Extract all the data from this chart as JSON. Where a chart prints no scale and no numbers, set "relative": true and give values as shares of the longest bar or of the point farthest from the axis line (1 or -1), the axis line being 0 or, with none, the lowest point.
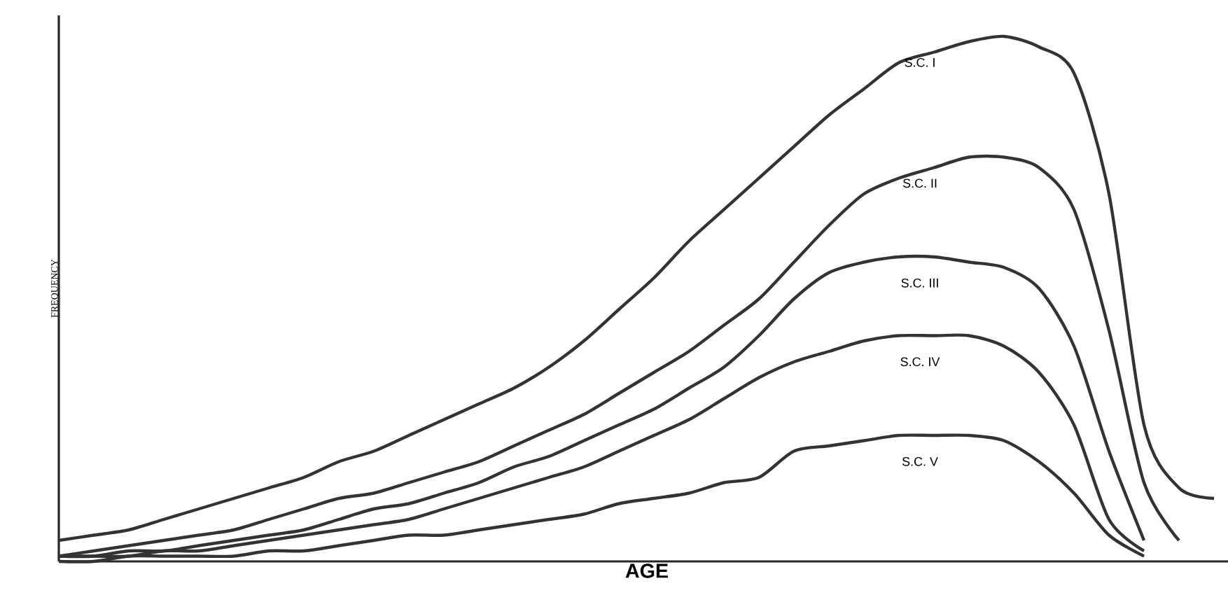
{
  "chart_data": {
    "type": "line",
    "xlabel": "AGE",
    "ylabel": "FREQUENCY",
    "relative": true,
    "line_style": "solid",
    "categories": [
      null,
      null,
      null,
      null,
      null,
      null,
      null,
      null,
      null,
      null,
      null,
      null,
      null,
      null,
      null,
      null,
      null,
      null,
      null,
      null,
      null,
      null,
      null,
      null,
      null,
      null,
      null,
      null,
      null,
      null,
      null,
      null,
      null,
      null
    ],
    "series": [
      {
        "name": "S.C. I",
        "color": "#333333",
        "values": [
          0.04,
          0.05,
          0.06,
          0.08,
          0.1,
          0.12,
          0.14,
          0.16,
          0.19,
          0.21,
          0.24,
          0.27,
          0.3,
          0.33,
          0.37,
          0.42,
          0.48,
          0.54,
          0.61,
          0.67,
          0.73,
          0.79,
          0.85,
          0.9,
          0.95,
          0.97,
          0.99,
          1,
          0.98,
          0.93,
          0.7,
          0.26,
          0.14,
          0.12
        ]
      },
      {
        "name": "S.C. II",
        "color": "#333333",
        "values": [
          0.01,
          0.02,
          0.03,
          0.04,
          0.05,
          0.06,
          0.08,
          0.1,
          0.12,
          0.13,
          0.15,
          0.17,
          0.19,
          0.22,
          0.25,
          0.28,
          0.32,
          0.36,
          0.4,
          0.45,
          0.5,
          0.57,
          0.64,
          0.7,
          0.73,
          0.75,
          0.77,
          0.77,
          0.75,
          0.67,
          0.44,
          0.15,
          0.04,
          null
        ]
      },
      {
        "name": "S.C. III",
        "color": "#333333",
        "values": [
          0.01,
          0.01,
          0.02,
          0.02,
          0.03,
          0.04,
          0.05,
          0.06,
          0.08,
          0.1,
          0.11,
          0.13,
          0.15,
          0.18,
          0.2,
          0.23,
          0.26,
          0.29,
          0.33,
          0.37,
          0.43,
          0.5,
          0.55,
          0.57,
          0.58,
          0.58,
          0.57,
          0.56,
          0.52,
          0.41,
          0.21,
          0.04,
          null,
          null
        ]
      },
      {
        "name": "S.C. IV",
        "color": "#333333",
        "values": [
          0.01,
          0.01,
          0.01,
          0.02,
          0.02,
          0.03,
          0.04,
          0.05,
          0.06,
          0.07,
          0.08,
          0.1,
          0.12,
          0.14,
          0.16,
          0.18,
          0.21,
          0.24,
          0.27,
          0.31,
          0.35,
          0.38,
          0.4,
          0.42,
          0.43,
          0.43,
          0.43,
          0.41,
          0.36,
          0.26,
          0.08,
          0.02,
          null,
          null
        ]
      },
      {
        "name": "S.C. V",
        "color": "#333333",
        "values": [
          0,
          0,
          0.01,
          0.01,
          0.01,
          0.01,
          0.02,
          0.02,
          0.03,
          0.04,
          0.05,
          0.05,
          0.06,
          0.07,
          0.08,
          0.09,
          0.11,
          0.12,
          0.13,
          0.15,
          0.16,
          0.21,
          0.22,
          0.23,
          0.24,
          0.24,
          0.24,
          0.23,
          0.19,
          0.13,
          0.05,
          0.01,
          null,
          null
        ]
      }
    ]
  }
}
